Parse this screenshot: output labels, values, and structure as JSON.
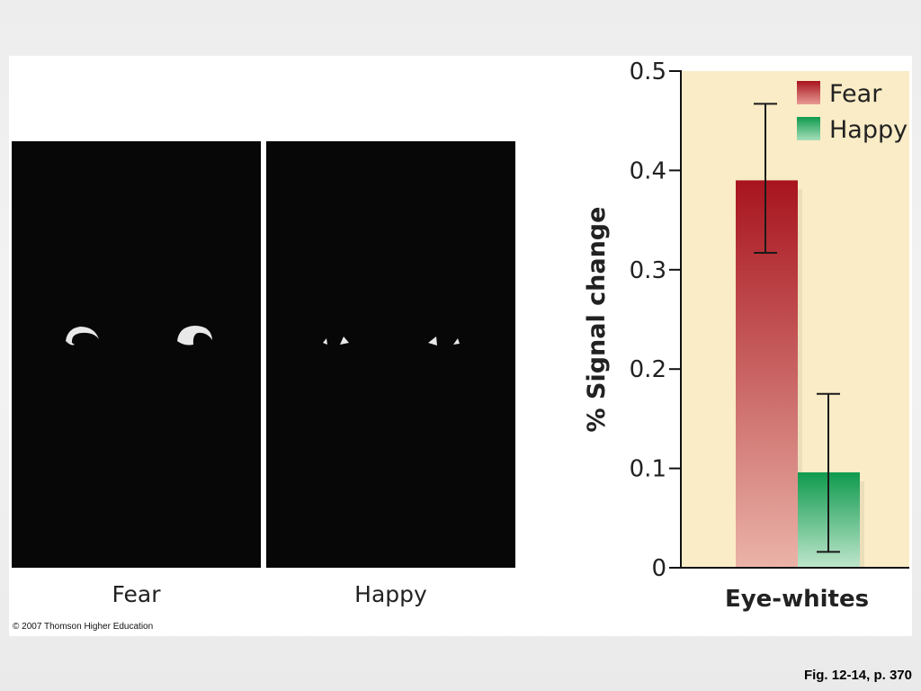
{
  "figure": {
    "images": [
      {
        "label": "Fear"
      },
      {
        "label": "Happy"
      }
    ],
    "copyright": "© 2007 Thomson Higher Education"
  },
  "caption": "Fig. 12-14, p. 370",
  "chart_data": {
    "type": "bar",
    "categories": [
      "Eye-whites"
    ],
    "xlabel": "Eye-whites",
    "ylabel": "% Signal change",
    "ylim": [
      0,
      0.5
    ],
    "yticks": [
      "0",
      "0.1",
      "0.2",
      "0.3",
      "0.4",
      "0.5"
    ],
    "series": [
      {
        "name": "Fear",
        "values": [
          0.39
        ],
        "error": [
          [
            0.317,
            0.467
          ]
        ],
        "color": "#a8141e"
      },
      {
        "name": "Happy",
        "values": [
          0.096
        ],
        "error": [
          [
            0.016,
            0.175
          ]
        ],
        "color": "#139a52"
      }
    ],
    "legend": "top-right",
    "background": "#faecc6",
    "grid": false
  }
}
